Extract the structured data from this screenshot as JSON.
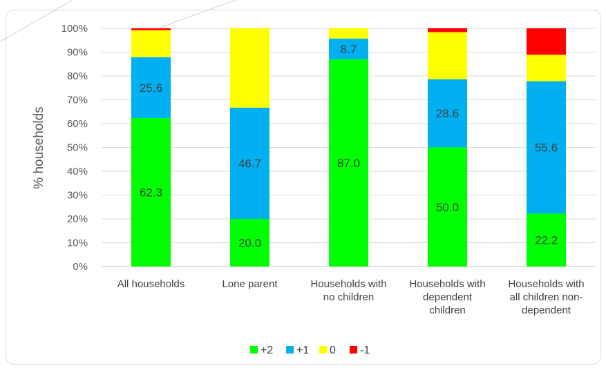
{
  "chart_data": {
    "type": "bar",
    "stacked": true,
    "percent": true,
    "title": "",
    "xlabel": "",
    "ylabel": "% households",
    "ylim": [
      0,
      100
    ],
    "yticks": [
      "0%",
      "10%",
      "20%",
      "30%",
      "40%",
      "50%",
      "60%",
      "70%",
      "80%",
      "90%",
      "100%"
    ],
    "grid": true,
    "legend_position": "bottom",
    "categories": [
      [
        "All  households"
      ],
      [
        "Lone parent"
      ],
      [
        "Households with",
        "no children"
      ],
      [
        "Households with",
        "dependent",
        "children"
      ],
      [
        "Households with",
        "all children non-",
        "dependent"
      ]
    ],
    "series": [
      {
        "name": "+2",
        "color": "#00ff00",
        "values": [
          62.3,
          20.0,
          87.0,
          50.0,
          22.2
        ],
        "labels": [
          "62.3",
          "20.0",
          "87.0",
          "50.0",
          "22.2"
        ]
      },
      {
        "name": "+1",
        "color": "#00b0f0",
        "values": [
          25.6,
          46.7,
          8.7,
          28.6,
          55.6
        ],
        "labels": [
          "25.6",
          "46.7",
          "8.7",
          "28.6",
          "55.6"
        ]
      },
      {
        "name": "0",
        "color": "#ffff00",
        "values": [
          11.3,
          33.3,
          4.3,
          19.8,
          11.1
        ],
        "labels": [
          "",
          "",
          "",
          "",
          ""
        ]
      },
      {
        "name": "-1",
        "color": "#ff0000",
        "values": [
          0.8,
          0.0,
          0.0,
          1.6,
          11.1
        ],
        "labels": [
          "",
          "",
          "",
          "",
          ""
        ]
      }
    ]
  }
}
